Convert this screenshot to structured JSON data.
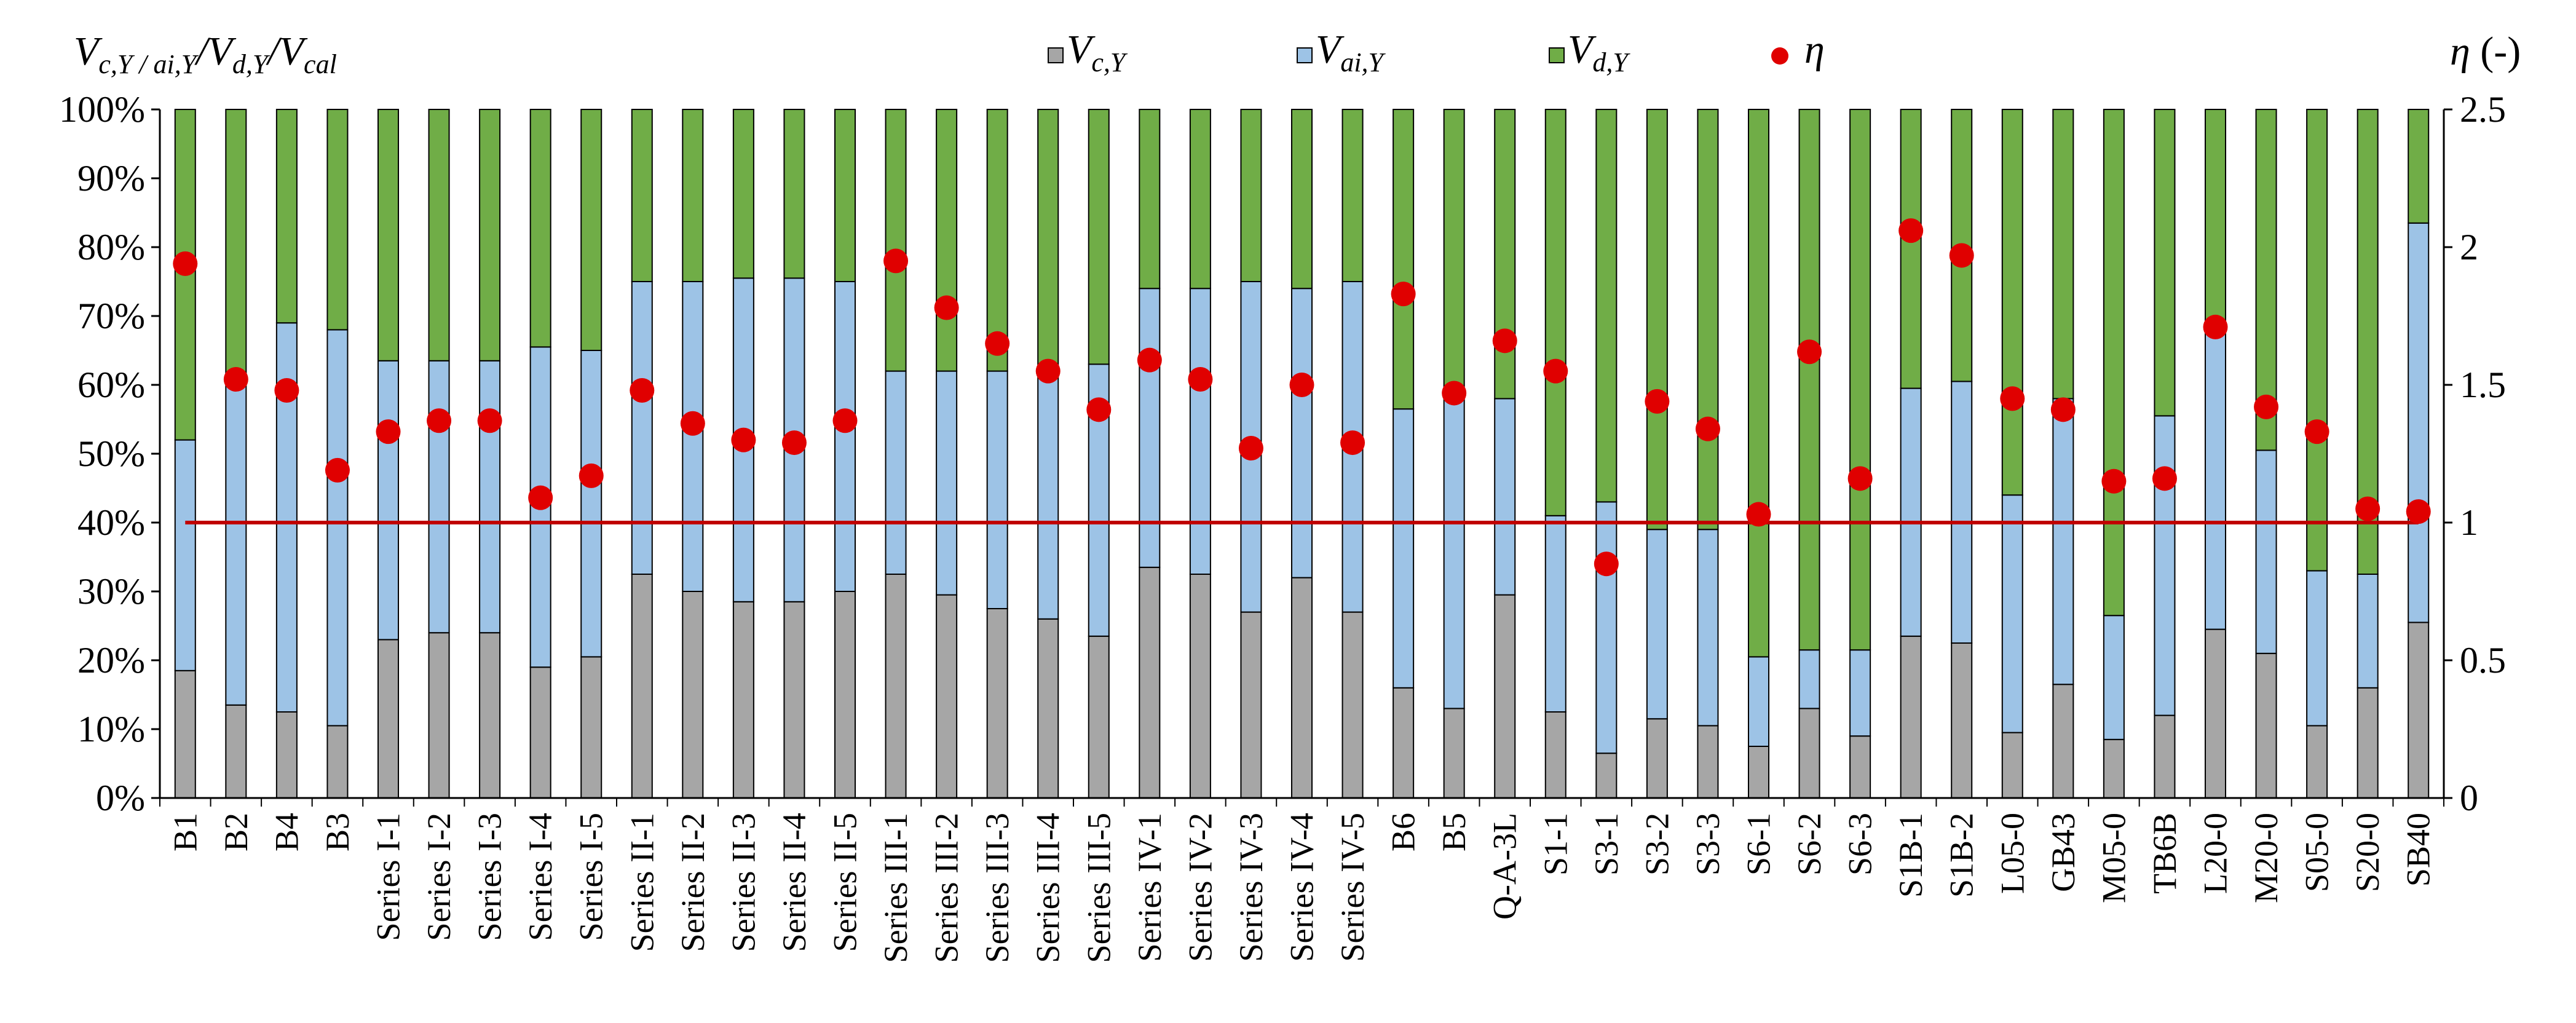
{
  "chart_data": {
    "type": "bar",
    "stacked": true,
    "stack_mode": "percent",
    "title": "",
    "ylabel_left": {
      "base": "V",
      "sub": "c,Y / ai,Y",
      "mid1": "/V",
      "sub2": "d,Y",
      "mid2": "/V",
      "sub3": "cal"
    },
    "ylabel_right": {
      "symbol": "η",
      "unit": " (-)"
    },
    "ylim_left": [
      0,
      100
    ],
    "ylim_right": [
      0,
      2.5
    ],
    "yticks_left": [
      "0%",
      "10%",
      "20%",
      "30%",
      "40%",
      "50%",
      "60%",
      "70%",
      "80%",
      "90%",
      "100%"
    ],
    "yticks_right": [
      "0",
      "0.5",
      "1",
      "1.5",
      "2",
      "2.5"
    ],
    "categories": [
      "B1",
      "B2",
      "B4",
      "B3",
      "Series I-1",
      "Series I-2",
      "Series I-3",
      "Series I-4",
      "Series I-5",
      "Series II-1",
      "Series II-2",
      "Series II-3",
      "Series II-4",
      "Series II-5",
      "Series III-1",
      "Series III-2",
      "Series III-3",
      "Series III-4",
      "Series III-5",
      "Series IV-1",
      "Series IV-2",
      "Series IV-3",
      "Series IV-4",
      "Series IV-5",
      "B6",
      "B5",
      "Q-A-3L",
      "S1-1",
      "S3-1",
      "S3-2",
      "S3-3",
      "S6-1",
      "S6-2",
      "S6-3",
      "S1B-1",
      "S1B-2",
      "L05-0",
      "GB43",
      "M05-0",
      "TB6B",
      "L20-0",
      "M20-0",
      "S05-0",
      "S20-0",
      "SB40"
    ],
    "series": [
      {
        "name": "Vc,Y",
        "label_base": "V",
        "label_sub": "c,Y",
        "color": "#a6a6a6",
        "values": [
          18.5,
          13.5,
          12.5,
          10.5,
          23,
          24,
          24,
          19,
          20.5,
          32.5,
          30,
          28.5,
          28.5,
          30,
          32.5,
          29.5,
          27.5,
          26,
          23.5,
          33.5,
          32.5,
          27,
          32,
          27,
          16,
          13,
          29.5,
          12.5,
          6.5,
          11.5,
          10.5,
          7.5,
          13,
          9,
          23.5,
          22.5,
          9.5,
          16.5,
          8.5,
          12,
          24.5,
          21,
          10.5,
          16,
          25.5
        ]
      },
      {
        "name": "Vai,Y",
        "label_base": "V",
        "label_sub": "ai,Y",
        "color": "#9dc3e6",
        "values": [
          33.5,
          47.5,
          56.5,
          57.5,
          40.5,
          39.5,
          39.5,
          46.5,
          44.5,
          42.5,
          45,
          47,
          47,
          45,
          29.5,
          32.5,
          34.5,
          36,
          39.5,
          40.5,
          41.5,
          48,
          42,
          48,
          40.5,
          45.5,
          28.5,
          28.5,
          36.5,
          27.5,
          28.5,
          13,
          8.5,
          12.5,
          36,
          38,
          34.5,
          41.5,
          18,
          43.5,
          43,
          29.5,
          22.5,
          16.5,
          58
        ]
      },
      {
        "name": "Vd,Y",
        "label_base": "V",
        "label_sub": "d,Y",
        "color": "#70ad47",
        "values": [
          48,
          39,
          31,
          32,
          36.5,
          36.5,
          36.5,
          34.5,
          35,
          25,
          25,
          24.5,
          24.5,
          25,
          38,
          38,
          38,
          38,
          37,
          26,
          26,
          25,
          26,
          25,
          43.5,
          41.5,
          42,
          59,
          57,
          61,
          61,
          79.5,
          78.5,
          78.5,
          40.5,
          39.5,
          56,
          42,
          73.5,
          44.5,
          32.5,
          49.5,
          67,
          67.5,
          16.5
        ]
      }
    ],
    "overlay": {
      "name": "η",
      "type": "scatter",
      "axis": "right",
      "color": "#e00000",
      "values": [
        1.94,
        1.52,
        1.48,
        1.19,
        1.33,
        1.37,
        1.37,
        1.09,
        1.17,
        1.48,
        1.36,
        1.3,
        1.29,
        1.37,
        1.95,
        1.78,
        1.65,
        1.55,
        1.41,
        1.59,
        1.52,
        1.27,
        1.5,
        1.29,
        1.83,
        1.47,
        1.66,
        1.55,
        0.85,
        1.44,
        1.34,
        1.03,
        1.62,
        1.16,
        2.06,
        1.97,
        1.45,
        1.41,
        1.15,
        1.16,
        1.71,
        1.42,
        1.33,
        1.05,
        1.04
      ]
    },
    "reference_line": {
      "axis": "right",
      "value": 1,
      "color": "#c00000"
    },
    "legend_position": "top"
  }
}
